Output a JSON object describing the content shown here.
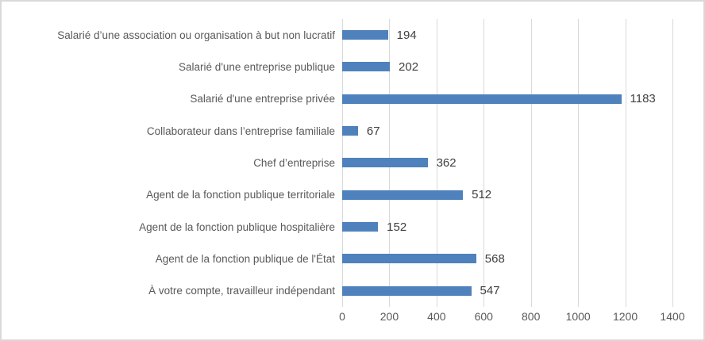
{
  "chart_data": {
    "type": "bar",
    "orientation": "horizontal",
    "title": "",
    "xlabel": "",
    "ylabel": "",
    "categories": [
      "Salarié d’une association ou organisation à but non lucratif",
      "Salarié d'une entreprise publique",
      "Salarié d'une entreprise privée",
      "Collaborateur dans l’entreprise familiale",
      "Chef d’entreprise",
      "Agent de la fonction publique territoriale",
      "Agent de la fonction publique hospitalière",
      "Agent de la fonction publique de l'État",
      "À votre compte, travailleur indépendant"
    ],
    "values": [
      194,
      202,
      1183,
      67,
      362,
      512,
      152,
      568,
      547
    ],
    "xlim": [
      0,
      1400
    ],
    "xticks": [
      0,
      200,
      400,
      600,
      800,
      1000,
      1200,
      1400
    ],
    "grid": true,
    "data_labels": true,
    "legend": false
  },
  "colors": {
    "bar": "#4f81bd",
    "gridline": "#d9d9d9",
    "frame_border": "#d9d9d9",
    "category_label": "#595959",
    "tick_label": "#595959",
    "data_label": "#404040",
    "background": "#ffffff"
  }
}
